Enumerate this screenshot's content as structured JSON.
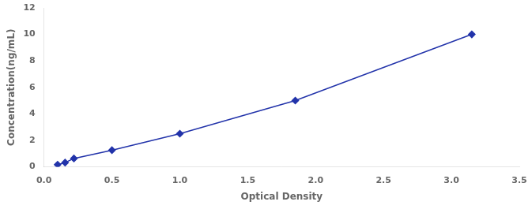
{
  "chart_data": {
    "type": "line",
    "xlabel": "Optical Density",
    "ylabel": "Concentration(ng/mL)",
    "x": [
      0.1,
      0.155,
      0.22,
      0.5,
      1.0,
      1.85,
      3.15
    ],
    "values": [
      0.156,
      0.312,
      0.625,
      1.25,
      2.5,
      5.0,
      10.0
    ],
    "color": "#2233aa",
    "marker": "diamond",
    "line_style": "solid",
    "xlim": [
      0.0,
      3.5
    ],
    "ylim": [
      0,
      12
    ],
    "xticks": [
      {
        "value": 0.0,
        "label": "0.0"
      },
      0.5,
      {
        "value": 1.0,
        "label": "1.0"
      },
      1.5,
      {
        "value": 2.0,
        "label": "2.0"
      },
      2.5,
      {
        "value": 3.0,
        "label": "3.0"
      },
      3.5
    ],
    "yticks": [
      0,
      2,
      4,
      6,
      8,
      10,
      12
    ],
    "grid": false
  }
}
